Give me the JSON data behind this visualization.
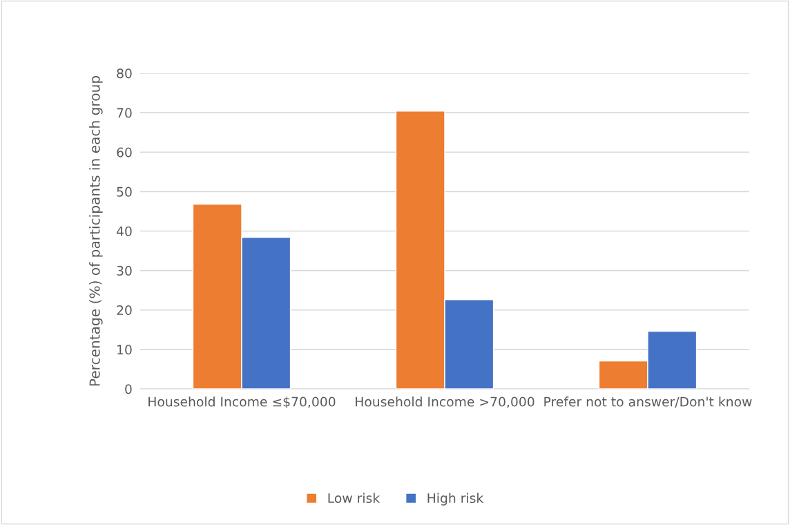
{
  "chart_data": {
    "type": "bar",
    "ylabel": "Percentage (%) of participants in each group",
    "categories": [
      "Household Income ≤$70,000",
      "Household Income >70,000",
      "Prefer not to answer/Don't know"
    ],
    "series": [
      {
        "name": "Low risk",
        "color": "#ed7d31",
        "values": [
          46.8,
          70.4,
          7.1
        ]
      },
      {
        "name": "High risk",
        "color": "#4472c4",
        "values": [
          38.4,
          22.6,
          14.6
        ]
      }
    ],
    "ylim": [
      0,
      80
    ],
    "yticks": [
      0,
      10,
      20,
      30,
      40,
      50,
      60,
      70,
      80
    ],
    "grid": "y",
    "legend": "bottom"
  }
}
